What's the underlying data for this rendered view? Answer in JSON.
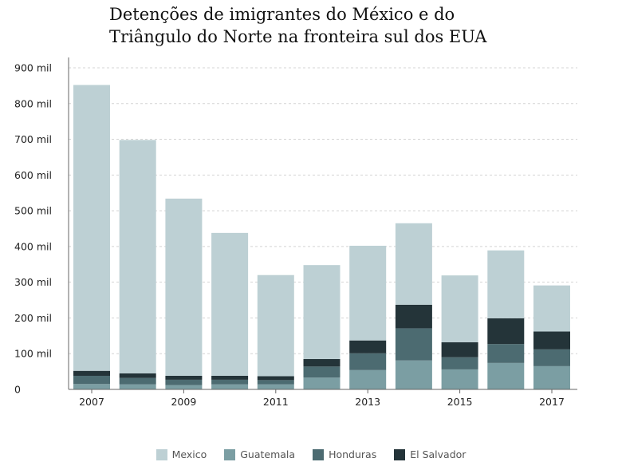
{
  "chart_data": {
    "type": "bar",
    "stacked": true,
    "title_lines": [
      "Detenções de imigrantes do México e do",
      "Triângulo do Norte na fronteira sul dos EUA"
    ],
    "categories": [
      "2007",
      "2008",
      "2009",
      "2010",
      "2011",
      "2012",
      "2013",
      "2014",
      "2015",
      "2016",
      "2017"
    ],
    "x_tick_labels": [
      {
        "category": "2007",
        "label": "2007"
      },
      {
        "category": "2009",
        "label": "2009"
      },
      {
        "category": "2011",
        "label": "2011"
      },
      {
        "category": "2013",
        "label": "2013"
      },
      {
        "category": "2015",
        "label": "2015"
      },
      {
        "category": "2017",
        "label": "2017"
      }
    ],
    "y_ticks": [
      {
        "value": 0,
        "label": "0"
      },
      {
        "value": 100,
        "label": "100 mil"
      },
      {
        "value": 200,
        "label": "200 mil"
      },
      {
        "value": 300,
        "label": "300 mil"
      },
      {
        "value": 400,
        "label": "400 mil"
      },
      {
        "value": 500,
        "label": "500 mil"
      },
      {
        "value": 600,
        "label": "600 mil"
      },
      {
        "value": 700,
        "label": "700 mil"
      },
      {
        "value": 800,
        "label": "800 mil"
      },
      {
        "value": 900,
        "label": "900 mil"
      }
    ],
    "ylim": [
      0,
      900
    ],
    "grid": true,
    "legend_position": "bottom-center",
    "series": [
      {
        "name": "Guatemala",
        "color": "#7b9ea3",
        "values": [
          15,
          14,
          12,
          14,
          14,
          33,
          54,
          81,
          56,
          74,
          65
        ]
      },
      {
        "name": "Honduras",
        "color": "#4c6b71",
        "values": [
          23,
          18,
          15,
          13,
          12,
          31,
          47,
          90,
          34,
          53,
          47
        ]
      },
      {
        "name": "El Salvador",
        "color": "#243439",
        "values": [
          14,
          13,
          11,
          11,
          11,
          21,
          36,
          66,
          42,
          72,
          50
        ]
      },
      {
        "name": "Mexico",
        "color": "#bdd0d4",
        "values": [
          800,
          653,
          496,
          400,
          283,
          263,
          265,
          228,
          187,
          190,
          129
        ]
      }
    ],
    "legend": [
      {
        "name": "Mexico",
        "color": "#bdd0d4"
      },
      {
        "name": "Guatemala",
        "color": "#7b9ea3"
      },
      {
        "name": "Honduras",
        "color": "#4c6b71"
      },
      {
        "name": "El Salvador",
        "color": "#243439"
      }
    ]
  }
}
